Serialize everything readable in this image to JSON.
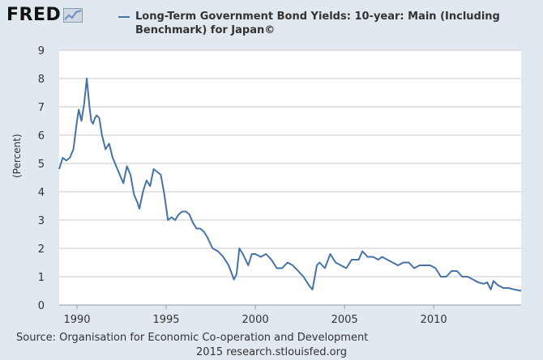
{
  "logo": {
    "text": "FRED"
  },
  "legend": {
    "color": "#4572a7",
    "label": "Long-Term Government Bond Yields: 10-year: Main (Including Benchmark) for Japan©"
  },
  "footer": {
    "source": "Source: Organisation for Economic Co-operation and Development",
    "credit": "2015 research.stlouisfed.org"
  },
  "colors": {
    "background": "#e1e9f0",
    "plot": "#ffffff",
    "line": "#4572a7",
    "grid": "#c8c8c8"
  },
  "chart_data": {
    "type": "line",
    "title": "",
    "ylabel": "(Percent)",
    "xlabel": "",
    "xlim": [
      1989.0,
      2014.9
    ],
    "ylim": [
      0,
      9
    ],
    "yticks": [
      "0",
      "1",
      "2",
      "3",
      "4",
      "5",
      "6",
      "7",
      "8",
      "9"
    ],
    "xticks": [
      "1990",
      "1995",
      "2000",
      "2005",
      "2010"
    ],
    "grid": "horizontal",
    "series": [
      {
        "name": "Long-Term Government Bond Yields: 10-year: Main (Including Benchmark) for Japan©",
        "color": "#4572a7",
        "x": [
          1989.0,
          1989.2,
          1989.4,
          1989.6,
          1989.8,
          1990.0,
          1990.1,
          1990.25,
          1990.4,
          1990.55,
          1990.7,
          1990.8,
          1990.9,
          1991.0,
          1991.1,
          1991.25,
          1991.4,
          1991.6,
          1991.8,
          1992.0,
          1992.2,
          1992.4,
          1992.6,
          1992.8,
          1993.0,
          1993.2,
          1993.4,
          1993.5,
          1993.7,
          1993.9,
          1994.1,
          1994.3,
          1994.5,
          1994.7,
          1994.9,
          1995.1,
          1995.3,
          1995.5,
          1995.7,
          1995.9,
          1996.1,
          1996.3,
          1996.5,
          1996.7,
          1996.9,
          1997.1,
          1997.3,
          1997.6,
          1997.9,
          1998.2,
          1998.5,
          1998.8,
          1998.95,
          1999.1,
          1999.3,
          1999.6,
          1999.8,
          2000.0,
          2000.3,
          2000.6,
          2000.9,
          2001.2,
          2001.5,
          2001.8,
          2002.1,
          2002.4,
          2002.7,
          2003.0,
          2003.2,
          2003.45,
          2003.6,
          2003.9,
          2004.2,
          2004.5,
          2004.8,
          2005.1,
          2005.4,
          2005.8,
          2006.0,
          2006.3,
          2006.6,
          2006.9,
          2007.1,
          2007.4,
          2007.7,
          2008.0,
          2008.3,
          2008.6,
          2008.9,
          2009.2,
          2009.5,
          2009.8,
          2010.1,
          2010.4,
          2010.7,
          2011.0,
          2011.3,
          2011.6,
          2011.9,
          2012.2,
          2012.5,
          2012.8,
          2013.0,
          2013.2,
          2013.35,
          2013.6,
          2013.9,
          2014.2,
          2014.5,
          2014.9
        ],
        "values": [
          4.8,
          5.2,
          5.1,
          5.2,
          5.5,
          6.5,
          6.9,
          6.5,
          7.1,
          8.0,
          7.0,
          6.5,
          6.4,
          6.6,
          6.7,
          6.6,
          6.0,
          5.5,
          5.7,
          5.2,
          4.9,
          4.6,
          4.3,
          4.9,
          4.6,
          3.9,
          3.6,
          3.4,
          4.0,
          4.4,
          4.2,
          4.8,
          4.7,
          4.6,
          3.9,
          3.0,
          3.1,
          3.0,
          3.2,
          3.3,
          3.3,
          3.2,
          2.9,
          2.7,
          2.7,
          2.6,
          2.4,
          2.0,
          1.9,
          1.7,
          1.4,
          0.9,
          1.1,
          2.0,
          1.8,
          1.4,
          1.8,
          1.8,
          1.7,
          1.8,
          1.6,
          1.3,
          1.3,
          1.5,
          1.4,
          1.2,
          1.0,
          0.7,
          0.55,
          1.4,
          1.5,
          1.3,
          1.8,
          1.5,
          1.4,
          1.3,
          1.6,
          1.6,
          1.9,
          1.7,
          1.7,
          1.6,
          1.7,
          1.6,
          1.5,
          1.4,
          1.5,
          1.5,
          1.3,
          1.4,
          1.4,
          1.4,
          1.3,
          1.0,
          1.0,
          1.2,
          1.2,
          1.0,
          1.0,
          0.9,
          0.8,
          0.75,
          0.8,
          0.55,
          0.85,
          0.7,
          0.6,
          0.6,
          0.55,
          0.5
        ]
      }
    ]
  }
}
